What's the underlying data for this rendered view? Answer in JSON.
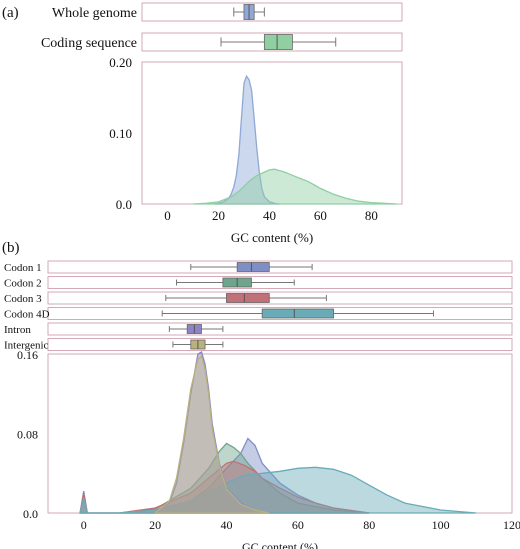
{
  "chart_data": [
    {
      "panel": "(a)",
      "type": "boxplot+histogram",
      "xlabel": "GC content (%)",
      "xlim": [
        -10,
        92
      ],
      "ylim": [
        0,
        0.2
      ],
      "xticks": [
        0,
        20,
        40,
        60,
        80
      ],
      "yticks": [
        "0.0",
        "0.10",
        "0.20"
      ],
      "colors": {
        "Whole genome": "#8fa8d6",
        "Coding sequence": "#8fcfa2"
      },
      "boxplots": [
        {
          "label": "Whole genome",
          "whisker_low": 26,
          "q1": 30,
          "median": 32,
          "q3": 34,
          "whisker_high": 38
        },
        {
          "label": "Coding sequence",
          "whisker_low": 21,
          "q1": 38,
          "median": 43,
          "q3": 49,
          "whisker_high": 66
        }
      ],
      "series": [
        {
          "name": "Whole genome",
          "x": [
            18,
            20,
            22,
            24,
            25,
            26,
            27,
            28,
            29,
            30,
            31,
            32,
            33,
            34,
            35,
            36,
            37,
            38,
            40,
            42,
            44
          ],
          "y": [
            0,
            0.001,
            0.003,
            0.008,
            0.014,
            0.024,
            0.04,
            0.07,
            0.12,
            0.17,
            0.18,
            0.175,
            0.16,
            0.12,
            0.08,
            0.045,
            0.022,
            0.01,
            0.003,
            0.001,
            0
          ]
        },
        {
          "name": "Coding sequence",
          "x": [
            10,
            15,
            20,
            25,
            28,
            30,
            32,
            35,
            38,
            40,
            42,
            44,
            46,
            48,
            50,
            52,
            55,
            58,
            60,
            65,
            70,
            75,
            80,
            85,
            90
          ],
          "y": [
            0,
            0.001,
            0.003,
            0.01,
            0.018,
            0.025,
            0.032,
            0.04,
            0.045,
            0.048,
            0.049,
            0.047,
            0.045,
            0.042,
            0.039,
            0.036,
            0.032,
            0.026,
            0.022,
            0.014,
            0.008,
            0.004,
            0.002,
            0.001,
            0
          ]
        }
      ]
    },
    {
      "panel": "(b)",
      "type": "boxplot+histogram",
      "xlabel": "GC content (%)",
      "xlim": [
        -10,
        120
      ],
      "ylim": [
        0,
        0.16
      ],
      "xticks": [
        0,
        20,
        40,
        60,
        80,
        100,
        120
      ],
      "yticks": [
        "0.0",
        "0.08",
        "0.16"
      ],
      "colors": {
        "Codon 1": "#7f8fc6",
        "Codon 2": "#6ea58c",
        "Codon 3": "#c07076",
        "Codon 4D": "#6aabb8",
        "Intron": "#8c84c6",
        "Intergenic": "#b7b27f"
      },
      "boxplots": [
        {
          "label": "Codon 1",
          "whisker_low": 30,
          "q1": 43,
          "median": 47,
          "q3": 52,
          "whisker_high": 64
        },
        {
          "label": "Codon 2",
          "whisker_low": 26,
          "q1": 39,
          "median": 43,
          "q3": 47,
          "whisker_high": 59
        },
        {
          "label": "Codon 3",
          "whisker_low": 23,
          "q1": 40,
          "median": 45,
          "q3": 52,
          "whisker_high": 68
        },
        {
          "label": "Codon 4D",
          "whisker_low": 22,
          "q1": 50,
          "median": 59,
          "q3": 70,
          "whisker_high": 98
        },
        {
          "label": "Intron",
          "whisker_low": 24,
          "q1": 29,
          "median": 31,
          "q3": 33,
          "whisker_high": 39
        },
        {
          "label": "Intergenic",
          "whisker_low": 25,
          "q1": 30,
          "median": 32,
          "q3": 34,
          "whisker_high": 39
        }
      ],
      "series": [
        {
          "name": "Codon 1",
          "x": [
            -1,
            0,
            1,
            10,
            20,
            30,
            35,
            40,
            44,
            46,
            48,
            50,
            55,
            60,
            65,
            70,
            80
          ],
          "y": [
            0,
            0.022,
            0,
            0,
            0.003,
            0.012,
            0.025,
            0.045,
            0.06,
            0.075,
            0.068,
            0.05,
            0.03,
            0.018,
            0.01,
            0.005,
            0
          ]
        },
        {
          "name": "Codon 2",
          "x": [
            -1,
            0,
            1,
            10,
            20,
            30,
            35,
            38,
            40,
            42,
            44,
            46,
            50,
            55,
            60,
            70,
            80
          ],
          "y": [
            0,
            0.018,
            0,
            0,
            0.004,
            0.025,
            0.045,
            0.062,
            0.07,
            0.066,
            0.06,
            0.05,
            0.035,
            0.02,
            0.01,
            0.003,
            0
          ]
        },
        {
          "name": "Codon 3",
          "x": [
            -1,
            0,
            1,
            10,
            20,
            30,
            35,
            40,
            42,
            45,
            48,
            50,
            55,
            60,
            65,
            70,
            80
          ],
          "y": [
            0,
            0.02,
            0,
            0,
            0.005,
            0.02,
            0.035,
            0.05,
            0.052,
            0.048,
            0.042,
            0.035,
            0.025,
            0.016,
            0.01,
            0.005,
            0
          ]
        },
        {
          "name": "Codon 4D",
          "x": [
            -1,
            0,
            1,
            10,
            20,
            30,
            40,
            45,
            50,
            55,
            60,
            65,
            70,
            75,
            80,
            85,
            90,
            100,
            110
          ],
          "y": [
            0,
            0.015,
            0,
            0,
            0.003,
            0.012,
            0.03,
            0.038,
            0.04,
            0.042,
            0.045,
            0.046,
            0.044,
            0.038,
            0.028,
            0.018,
            0.01,
            0.003,
            0
          ]
        },
        {
          "name": "Intron",
          "x": [
            20,
            24,
            26,
            28,
            30,
            32,
            33,
            34,
            35,
            36,
            38,
            40,
            44,
            48,
            52
          ],
          "y": [
            0,
            0.01,
            0.03,
            0.07,
            0.12,
            0.16,
            0.162,
            0.15,
            0.125,
            0.09,
            0.05,
            0.025,
            0.01,
            0.003,
            0
          ]
        },
        {
          "name": "Intergenic",
          "x": [
            20,
            24,
            26,
            28,
            30,
            32,
            33,
            34,
            35,
            36,
            38,
            40,
            44,
            48,
            52
          ],
          "y": [
            0,
            0.012,
            0.035,
            0.075,
            0.125,
            0.155,
            0.158,
            0.145,
            0.12,
            0.085,
            0.048,
            0.024,
            0.009,
            0.003,
            0
          ]
        }
      ]
    }
  ]
}
